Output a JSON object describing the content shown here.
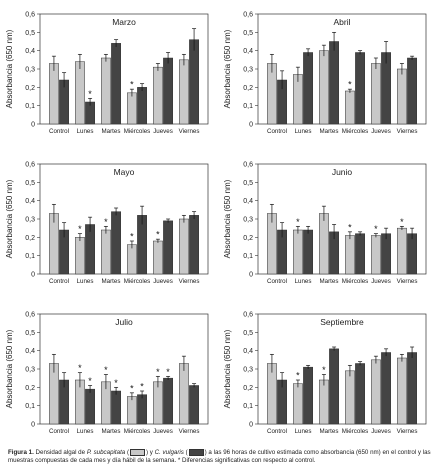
{
  "figure": {
    "caption_label": "Figura 1.",
    "caption_part1": "Densidad algal de",
    "species_1": "P. subcapitata",
    "caption_part2": "y",
    "species_2": "C. vulgaris",
    "caption_part3": "a las 96 horas de cultivo estimada como absorbancia (650 nm) en el control y las muestras compuestas de cada mes y día hábil de la semana. * Diferencias significativas con respecto al control."
  },
  "colors": {
    "light": "#c8c8c8",
    "dark": "#444444"
  },
  "chart_data": [
    {
      "type": "bar",
      "title": "Marzo",
      "ylabel": "Absorbancia (650 nm)",
      "ylim": [
        0,
        0.6
      ],
      "yticks": [
        "0",
        "0,1",
        "0,2",
        "0,3",
        "0,4",
        "0,5",
        "0,6"
      ],
      "categories": [
        "Control",
        "Lunes",
        "Martes",
        "Miércoles",
        "Jueves",
        "Viernes"
      ],
      "series": [
        {
          "values": [
            0.33,
            0.34,
            0.36,
            0.17,
            0.31,
            0.35
          ],
          "errors": [
            0.04,
            0.04,
            0.02,
            0.02,
            0.02,
            0.03
          ],
          "significant": [
            false,
            false,
            false,
            true,
            false,
            false
          ]
        },
        {
          "values": [
            0.24,
            0.12,
            0.44,
            0.2,
            0.36,
            0.46
          ],
          "errors": [
            0.04,
            0.02,
            0.02,
            0.02,
            0.03,
            0.06
          ],
          "significant": [
            false,
            true,
            false,
            false,
            false,
            false
          ]
        }
      ]
    },
    {
      "type": "bar",
      "title": "Abril",
      "ylabel": "Absorbancia (650 nm)",
      "ylim": [
        0,
        0.6
      ],
      "yticks": [
        "0",
        "0,1",
        "0,2",
        "0,3",
        "0,4",
        "0,5",
        "0,6"
      ],
      "categories": [
        "Control",
        "Lunes",
        "Martes",
        "Miércoles",
        "Jueves",
        "Viernes"
      ],
      "series": [
        {
          "values": [
            0.33,
            0.27,
            0.4,
            0.18,
            0.33,
            0.3
          ],
          "errors": [
            0.05,
            0.04,
            0.03,
            0.01,
            0.03,
            0.03
          ],
          "significant": [
            false,
            false,
            false,
            true,
            false,
            false
          ]
        },
        {
          "values": [
            0.24,
            0.39,
            0.45,
            0.39,
            0.39,
            0.36
          ],
          "errors": [
            0.05,
            0.02,
            0.05,
            0.01,
            0.06,
            0.01
          ],
          "significant": [
            false,
            false,
            false,
            false,
            false,
            false
          ]
        }
      ]
    },
    {
      "type": "bar",
      "title": "Mayo",
      "ylabel": "Absorbancia (650 nm)",
      "ylim": [
        0,
        0.6
      ],
      "yticks": [
        "0",
        "0,1",
        "0,2",
        "0,3",
        "0,4",
        "0,5",
        "0,6"
      ],
      "categories": [
        "Control",
        "Lunes",
        "Martes",
        "Miércoles",
        "Jueves",
        "Viernes"
      ],
      "series": [
        {
          "values": [
            0.33,
            0.2,
            0.24,
            0.16,
            0.18,
            0.3
          ],
          "errors": [
            0.05,
            0.02,
            0.02,
            0.02,
            0.01,
            0.02
          ],
          "significant": [
            false,
            true,
            true,
            true,
            true,
            false
          ]
        },
        {
          "values": [
            0.24,
            0.27,
            0.34,
            0.32,
            0.29,
            0.32
          ],
          "errors": [
            0.04,
            0.04,
            0.02,
            0.05,
            0.01,
            0.02
          ],
          "significant": [
            false,
            false,
            false,
            false,
            false,
            false
          ]
        }
      ]
    },
    {
      "type": "bar",
      "title": "Junio",
      "ylabel": "Absorbancia (650 nm)",
      "ylim": [
        0,
        0.6
      ],
      "yticks": [
        "0",
        "0,1",
        "0,2",
        "0,3",
        "0,4",
        "0,5",
        "0,6"
      ],
      "categories": [
        "Control",
        "Lunes",
        "Martes",
        "Miércoles",
        "Jueves",
        "Viernes"
      ],
      "series": [
        {
          "values": [
            0.33,
            0.24,
            0.33,
            0.21,
            0.21,
            0.25
          ],
          "errors": [
            0.05,
            0.02,
            0.04,
            0.02,
            0.01,
            0.01
          ],
          "significant": [
            false,
            true,
            false,
            true,
            true,
            true
          ]
        },
        {
          "values": [
            0.24,
            0.24,
            0.23,
            0.22,
            0.22,
            0.22
          ],
          "errors": [
            0.04,
            0.02,
            0.04,
            0.01,
            0.03,
            0.03
          ],
          "significant": [
            false,
            false,
            false,
            false,
            false,
            false
          ]
        }
      ]
    },
    {
      "type": "bar",
      "title": "Julio",
      "ylabel": "Absorbancia (650 nm)",
      "ylim": [
        0,
        0.6
      ],
      "yticks": [
        "0",
        "0,1",
        "0,2",
        "0,3",
        "0,4",
        "0,5",
        "0,6"
      ],
      "categories": [
        "Control",
        "Lunes",
        "Martes",
        "Miércoles",
        "Jueves",
        "Viernes"
      ],
      "series": [
        {
          "values": [
            0.33,
            0.24,
            0.23,
            0.15,
            0.23,
            0.33
          ],
          "errors": [
            0.05,
            0.04,
            0.04,
            0.02,
            0.03,
            0.04
          ],
          "significant": [
            false,
            true,
            true,
            true,
            true,
            false
          ]
        },
        {
          "values": [
            0.24,
            0.19,
            0.18,
            0.16,
            0.25,
            0.21
          ],
          "errors": [
            0.04,
            0.02,
            0.02,
            0.02,
            0.01,
            0.01
          ],
          "significant": [
            false,
            true,
            true,
            true,
            true,
            false
          ]
        }
      ]
    },
    {
      "type": "bar",
      "title": "Septiembre",
      "ylabel": "Absorbancia (650 nm)",
      "ylim": [
        0,
        0.6
      ],
      "yticks": [
        "0",
        "0,1",
        "0,2",
        "0,3",
        "0,4",
        "0,5",
        "0,6"
      ],
      "categories": [
        "Control",
        "Lunes",
        "Martes",
        "Miércoles",
        "Jueves",
        "Viernes"
      ],
      "series": [
        {
          "values": [
            0.33,
            0.22,
            0.24,
            0.29,
            0.35,
            0.36
          ],
          "errors": [
            0.05,
            0.02,
            0.03,
            0.03,
            0.02,
            0.02
          ],
          "significant": [
            false,
            true,
            true,
            false,
            false,
            false
          ]
        },
        {
          "values": [
            0.24,
            0.31,
            0.41,
            0.33,
            0.39,
            0.39
          ],
          "errors": [
            0.04,
            0.01,
            0.01,
            0.01,
            0.02,
            0.03
          ],
          "significant": [
            false,
            false,
            false,
            false,
            false,
            false
          ]
        }
      ]
    }
  ]
}
